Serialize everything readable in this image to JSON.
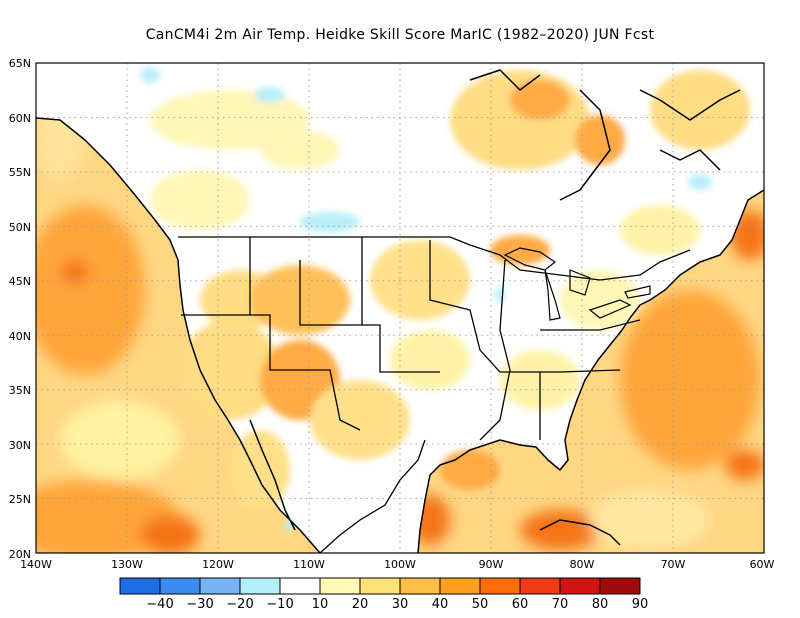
{
  "title": "CanCM4i  2m Air Temp. Heidke Skill Score MarIC (1982–2020) JUN Fcst",
  "lat_labels": [
    "65N",
    "60N",
    "55N",
    "50N",
    "45N",
    "40N",
    "35N",
    "30N",
    "25N",
    "20N"
  ],
  "lon_labels": [
    "140W",
    "130W",
    "120W",
    "110W",
    "100W",
    "90W",
    "80W",
    "70W",
    "60W"
  ],
  "colorbar": {
    "labels": [
      "−40",
      "−30",
      "−20",
      "−10",
      "10",
      "20",
      "30",
      "40",
      "50",
      "60",
      "70",
      "80",
      "90"
    ],
    "colors": [
      "#1e6ee6",
      "#3c8cf0",
      "#78b4f5",
      "#b4f0fa",
      "#ffffff",
      "#fffab4",
      "#ffe178",
      "#ffbe46",
      "#ffa01e",
      "#ff6e0a",
      "#f03c14",
      "#d21414",
      "#a00a0a"
    ]
  },
  "colors": {
    "ocean": "#ffd27a",
    "land": "#ffffff",
    "high": "#ff9a2e",
    "highest": "#f06010",
    "light": "#fff4a8",
    "mid": "#ffe07a",
    "negative": "#b8eef8",
    "coast": "#000000",
    "grid": "#9a9a9a"
  }
}
